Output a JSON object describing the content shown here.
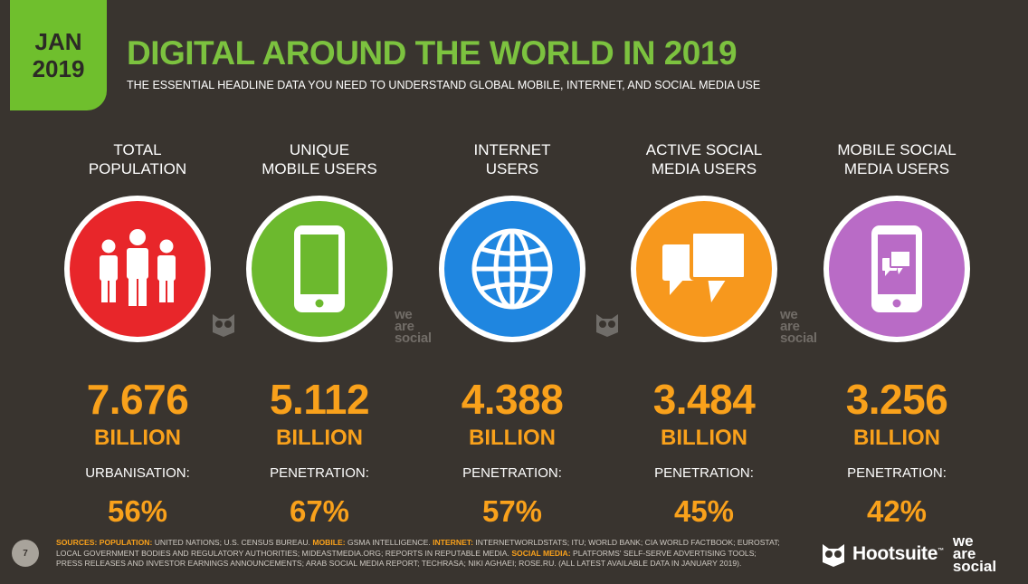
{
  "header": {
    "badge_month": "JAN",
    "badge_year": "2019",
    "title": "DIGITAL AROUND THE WORLD IN 2019",
    "subtitle": "THE ESSENTIAL HEADLINE DATA YOU NEED TO UNDERSTAND GLOBAL MOBILE, INTERNET, AND SOCIAL MEDIA USE"
  },
  "stats": [
    {
      "label_line1": "TOTAL",
      "label_line2": "POPULATION",
      "icon": "people-icon",
      "color": "#e8262a",
      "value": "7.676",
      "unit": "BILLION",
      "sublabel": "URBANISATION:",
      "subvalue": "56%"
    },
    {
      "label_line1": "UNIQUE",
      "label_line2": "MOBILE USERS",
      "icon": "mobile-phone-icon",
      "color": "#6cb92e",
      "value": "5.112",
      "unit": "BILLION",
      "sublabel": "PENETRATION:",
      "subvalue": "67%"
    },
    {
      "label_line1": "INTERNET",
      "label_line2": "USERS",
      "icon": "globe-icon",
      "color": "#1f86e0",
      "value": "4.388",
      "unit": "BILLION",
      "sublabel": "PENETRATION:",
      "subvalue": "57%"
    },
    {
      "label_line1": "ACTIVE SOCIAL",
      "label_line2": "MEDIA USERS",
      "icon": "chat-bubbles-icon",
      "color": "#f7981d",
      "value": "3.484",
      "unit": "BILLION",
      "sublabel": "PENETRATION:",
      "subvalue": "45%"
    },
    {
      "label_line1": "MOBILE SOCIAL",
      "label_line2": "MEDIA USERS",
      "icon": "mobile-chat-icon",
      "color": "#b96bc6",
      "value": "3.256",
      "unit": "BILLION",
      "sublabel": "PENETRATION:",
      "subvalue": "42%"
    }
  ],
  "watermark": {
    "line1": "we",
    "line2": "are",
    "line3": "social"
  },
  "footer": {
    "page_number": "7",
    "sources_key1": "SOURCES:",
    "pop_key": "POPULATION:",
    "pop_text": " UNITED NATIONS; U.S. CENSUS BUREAU. ",
    "mobile_key": "MOBILE:",
    "mobile_text": " GSMA INTELLIGENCE. ",
    "internet_key": "INTERNET:",
    "internet_text": " INTERNETWORLDSTATS; ITU; WORLD BANK; CIA WORLD FACTBOOK; EUROSTAT; LOCAL GOVERNMENT BODIES AND REGULATORY AUTHORITIES; MIDEASTMEDIA.ORG; REPORTS IN REPUTABLE MEDIA. ",
    "social_key": "SOCIAL MEDIA:",
    "social_text": " PLATFORMS' SELF-SERVE ADVERTISING TOOLS; PRESS RELEASES AND INVESTOR EARNINGS ANNOUNCEMENTS; ARAB SOCIAL MEDIA REPORT; TECHRASA; NIKI AGHAEI; ROSE.RU. (ALL LATEST AVAILABLE DATA IN JANUARY 2019).",
    "brand_name": "Hootsuite",
    "brand_tm": "™",
    "brand2_line1": "we",
    "brand2_line2": "are",
    "brand2_line3": "social"
  }
}
